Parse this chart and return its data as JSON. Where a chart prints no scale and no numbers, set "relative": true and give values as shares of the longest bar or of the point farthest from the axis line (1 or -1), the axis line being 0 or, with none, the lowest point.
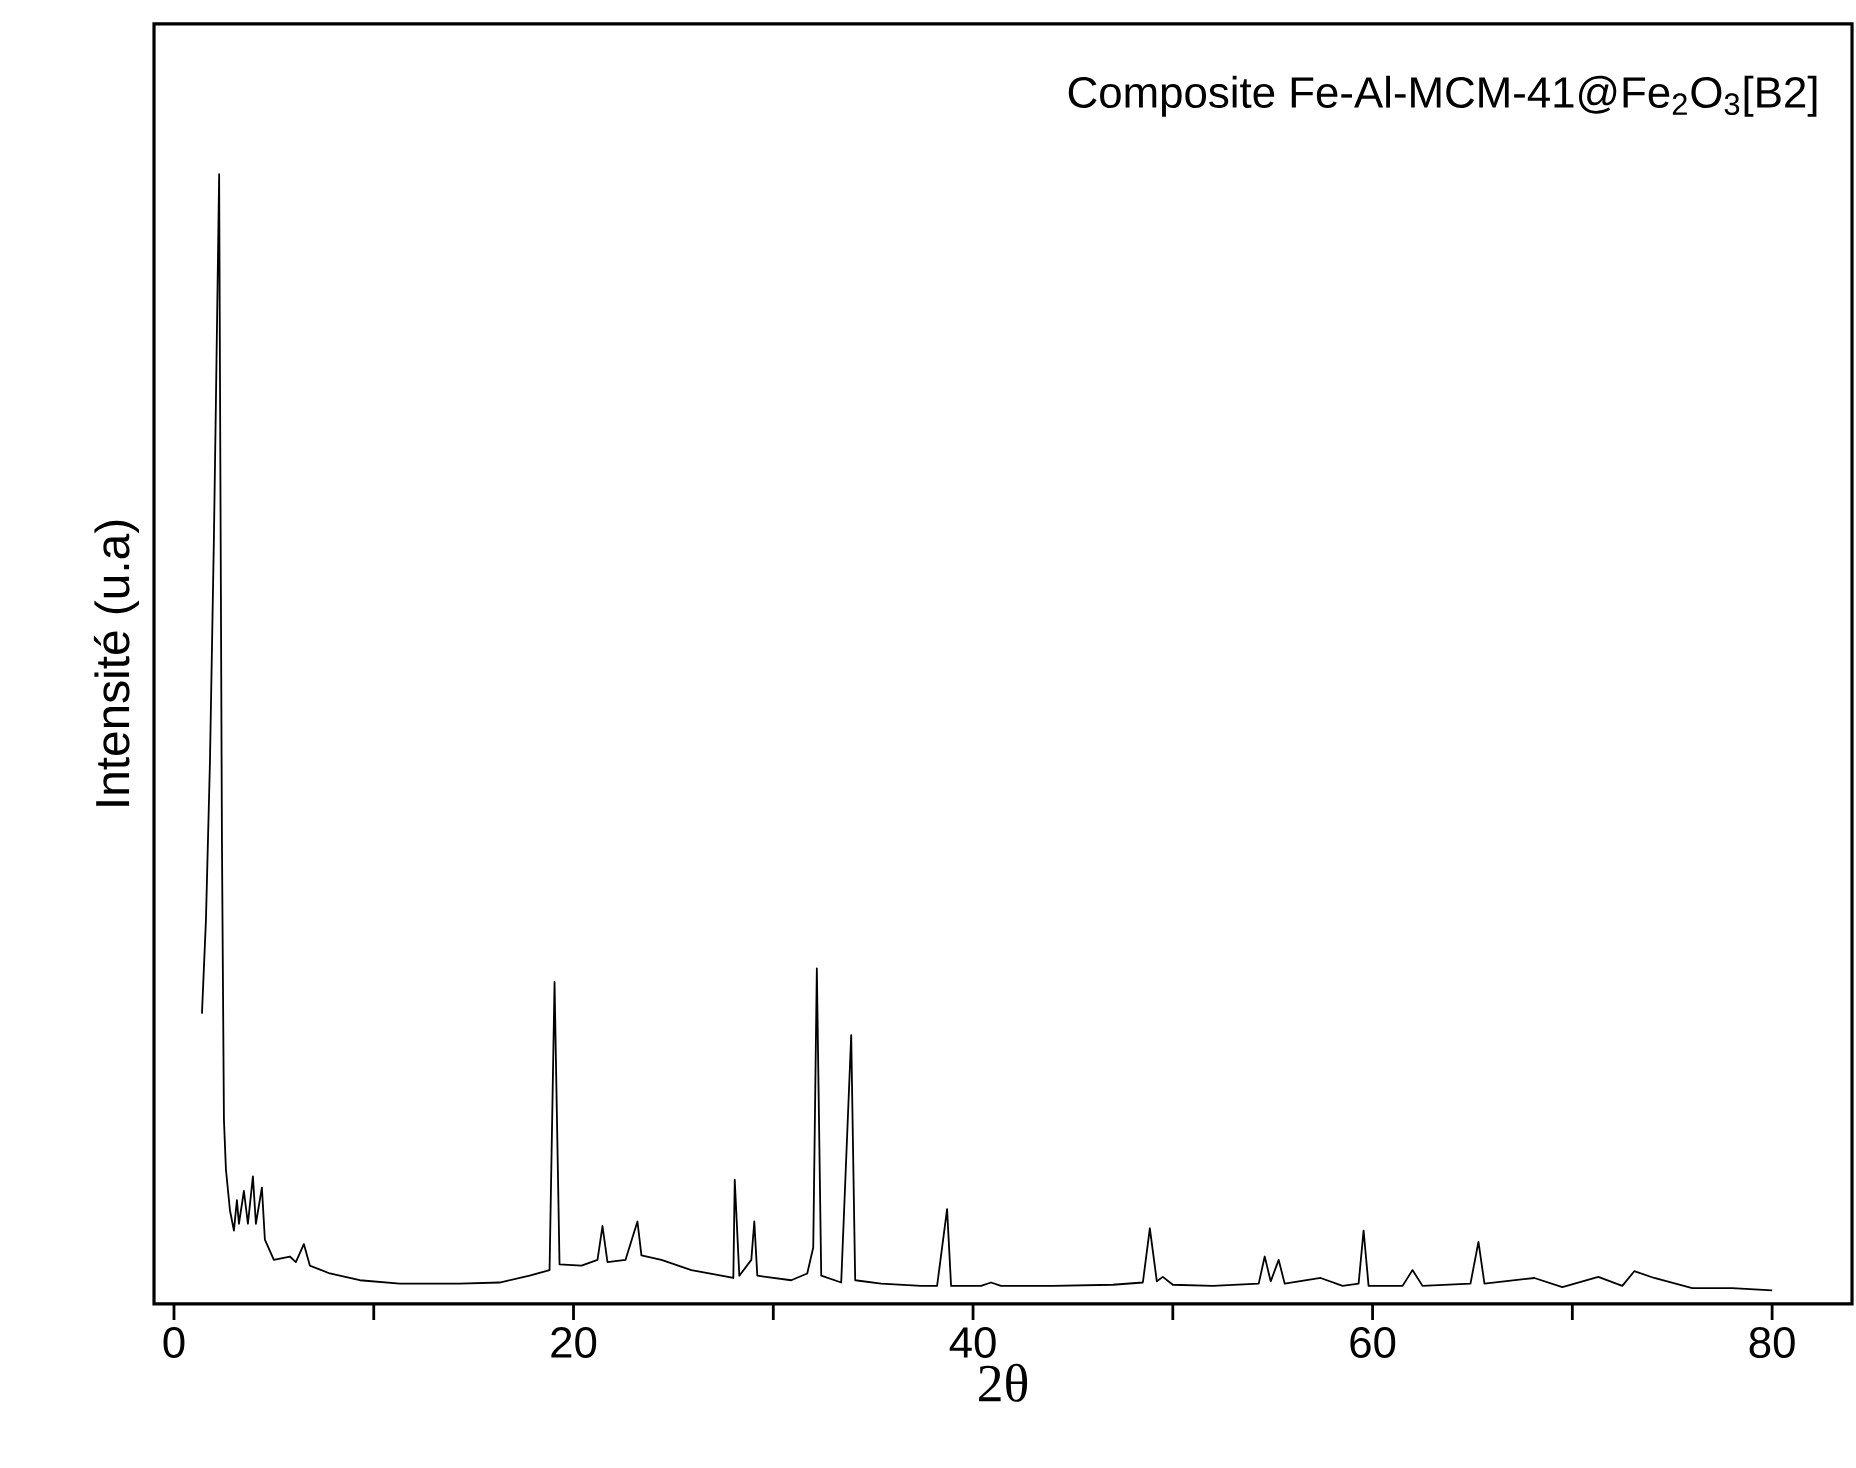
{
  "chart_data": {
    "type": "line",
    "relative": true,
    "color": "#000000",
    "annotations": [
      "Composite Fe-Al-MCM-41@Fe$_{2}$O$_{3}$[B2]"
    ],
    "xlabel": "2θ",
    "ylabel": "Intensité (u.a)",
    "xlim": [
      -1,
      84
    ],
    "xticks": [
      0,
      {
        "value": 10,
        "label": null
      },
      20,
      {
        "value": 30,
        "label": null
      },
      40,
      {
        "value": 50,
        "label": null
      },
      60,
      {
        "value": 70,
        "label": null
      },
      80
    ],
    "x": [
      1.4,
      1.6,
      1.8,
      2.0,
      2.1,
      2.26,
      2.4,
      2.5,
      2.6,
      2.8,
      3.0,
      3.15,
      3.25,
      3.5,
      3.7,
      3.95,
      4.1,
      4.4,
      4.55,
      5.0,
      5.8,
      6.1,
      6.5,
      6.8,
      7.8,
      9.3,
      11.3,
      14.3,
      16.3,
      17.8,
      18.8,
      19.05,
      19.3,
      20.4,
      21.2,
      21.45,
      21.7,
      22.6,
      23.2,
      23.4,
      24.4,
      25.9,
      27.4,
      28.0,
      28.07,
      28.3,
      28.9,
      29.05,
      29.2,
      30.9,
      31.7,
      32.0,
      32.18,
      32.4,
      33.4,
      33.9,
      34.1,
      35.4,
      37.4,
      38.2,
      38.7,
      38.9,
      40.4,
      40.9,
      41.4,
      44.0,
      47.0,
      48.5,
      48.85,
      49.2,
      49.5,
      50.0,
      52.0,
      54.3,
      54.6,
      54.9,
      55.3,
      55.6,
      57.4,
      58.5,
      59.3,
      59.55,
      59.8,
      61.5,
      62.0,
      62.5,
      64.9,
      65.3,
      65.6,
      68.1,
      69.5,
      71.3,
      72.5,
      73.1,
      74.1,
      76.0,
      78.0,
      80.0
    ],
    "values": [
      0.257,
      0.34,
      0.48,
      0.68,
      0.8,
      1.0,
      0.41,
      0.163,
      0.119,
      0.083,
      0.065,
      0.092,
      0.071,
      0.1,
      0.071,
      0.113,
      0.071,
      0.103,
      0.057,
      0.039,
      0.042,
      0.037,
      0.053,
      0.034,
      0.027,
      0.021,
      0.018,
      0.018,
      0.019,
      0.025,
      0.03,
      0.285,
      0.035,
      0.034,
      0.039,
      0.069,
      0.037,
      0.039,
      0.073,
      0.043,
      0.039,
      0.03,
      0.025,
      0.023,
      0.11,
      0.025,
      0.039,
      0.073,
      0.025,
      0.021,
      0.027,
      0.05,
      0.297,
      0.025,
      0.019,
      0.238,
      0.021,
      0.018,
      0.016,
      0.016,
      0.084,
      0.016,
      0.016,
      0.019,
      0.016,
      0.016,
      0.017,
      0.019,
      0.067,
      0.02,
      0.024,
      0.017,
      0.016,
      0.018,
      0.042,
      0.02,
      0.039,
      0.018,
      0.023,
      0.016,
      0.018,
      0.065,
      0.016,
      0.016,
      0.03,
      0.016,
      0.018,
      0.055,
      0.018,
      0.023,
      0.015,
      0.024,
      0.016,
      0.029,
      0.023,
      0.014,
      0.014,
      0.012
    ]
  }
}
